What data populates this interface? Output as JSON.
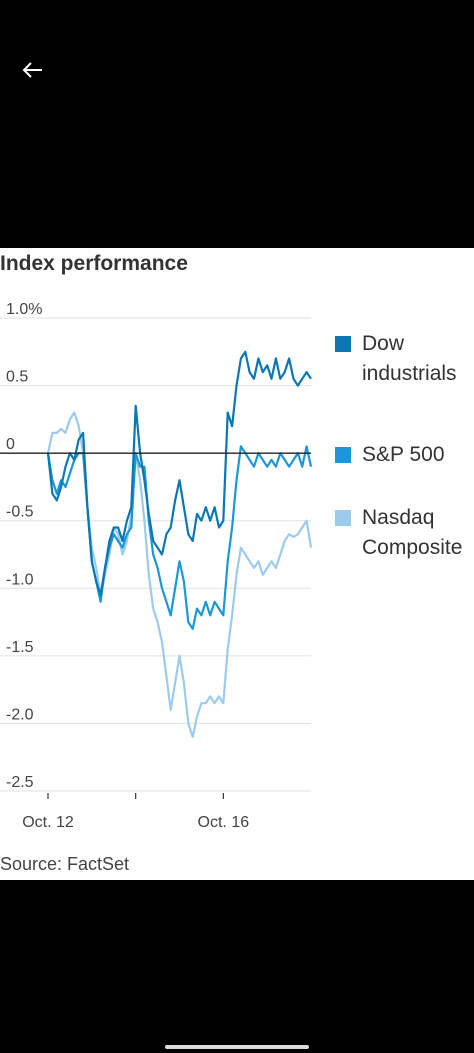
{
  "nav": {
    "back_icon": "arrow-left-icon"
  },
  "source": "Source: FactSet",
  "chart_data": {
    "type": "line",
    "title": "Index performance",
    "xlabel": "",
    "ylabel": "",
    "x": [
      0,
      1,
      2,
      3,
      4,
      5,
      6,
      7,
      8,
      9,
      10,
      11,
      12,
      13,
      14,
      15,
      16,
      17,
      18,
      19,
      20,
      21,
      22,
      23,
      24,
      25,
      26,
      27,
      28,
      29,
      30,
      31,
      32,
      33,
      34,
      35,
      36,
      37,
      38,
      39,
      40,
      41,
      42,
      43,
      44,
      45,
      46,
      47,
      48,
      49,
      50,
      51,
      52,
      53,
      54,
      55,
      56,
      57,
      58,
      59,
      60
    ],
    "x_tick_positions": [
      0,
      20,
      40
    ],
    "x_tick_labels": [
      "Oct. 12",
      "",
      "Oct. 16"
    ],
    "ylim": [
      -2.5,
      1.0
    ],
    "y_ticks": [
      1.0,
      0.5,
      0,
      -0.5,
      -1.0,
      -1.5,
      -2.0,
      -2.5
    ],
    "y_tick_labels": [
      "1.0%",
      "0.5",
      "0",
      "-0.5",
      "-1.0",
      "-1.5",
      "-2.0",
      "-2.5"
    ],
    "grid": true,
    "legend_position": "right",
    "colors": {
      "dow": "#0a77b2",
      "sp500": "#1a97d6",
      "nasdaq": "#9ccbeb",
      "zero_line": "#222222",
      "grid": "#e1e1e1"
    },
    "series": [
      {
        "name": "Nasdaq Composite",
        "key": "nasdaq",
        "values": [
          0.0,
          0.15,
          0.15,
          0.18,
          0.15,
          0.25,
          0.3,
          0.2,
          0.0,
          -0.4,
          -0.7,
          -0.85,
          -1.05,
          -0.9,
          -0.75,
          -0.55,
          -0.6,
          -0.75,
          -0.65,
          -0.45,
          0.0,
          -0.2,
          -0.5,
          -0.9,
          -1.15,
          -1.25,
          -1.4,
          -1.65,
          -1.9,
          -1.7,
          -1.5,
          -1.7,
          -2.0,
          -2.1,
          -1.95,
          -1.85,
          -1.85,
          -1.8,
          -1.85,
          -1.8,
          -1.85,
          -1.45,
          -1.2,
          -0.9,
          -0.7,
          -0.75,
          -0.8,
          -0.85,
          -0.8,
          -0.9,
          -0.85,
          -0.8,
          -0.85,
          -0.75,
          -0.65,
          -0.6,
          -0.62,
          -0.6,
          -0.55,
          -0.5,
          -0.7
        ]
      },
      {
        "name": "S&P 500",
        "key": "sp500",
        "values": [
          0.0,
          -0.2,
          -0.3,
          -0.2,
          -0.25,
          -0.15,
          -0.05,
          0.0,
          0.0,
          -0.4,
          -0.8,
          -0.95,
          -1.1,
          -0.85,
          -0.7,
          -0.6,
          -0.65,
          -0.7,
          -0.6,
          -0.55,
          0.0,
          -0.1,
          -0.1,
          -0.5,
          -0.75,
          -0.85,
          -1.0,
          -1.1,
          -1.2,
          -1.0,
          -0.8,
          -0.95,
          -1.25,
          -1.3,
          -1.15,
          -1.2,
          -1.1,
          -1.2,
          -1.1,
          -1.15,
          -1.2,
          -0.8,
          -0.55,
          -0.2,
          0.05,
          0.0,
          -0.05,
          -0.1,
          0.0,
          -0.05,
          -0.1,
          -0.05,
          -0.1,
          0.0,
          -0.05,
          -0.1,
          -0.05,
          0.0,
          -0.1,
          0.05,
          -0.1
        ]
      },
      {
        "name": "Dow industrials",
        "key": "dow",
        "values": [
          0.0,
          -0.3,
          -0.35,
          -0.25,
          -0.1,
          0.0,
          -0.05,
          0.1,
          0.15,
          -0.4,
          -0.8,
          -0.95,
          -1.05,
          -0.85,
          -0.65,
          -0.55,
          -0.55,
          -0.65,
          -0.5,
          -0.4,
          0.35,
          0.0,
          -0.2,
          -0.45,
          -0.65,
          -0.7,
          -0.75,
          -0.6,
          -0.55,
          -0.35,
          -0.2,
          -0.4,
          -0.6,
          -0.65,
          -0.45,
          -0.5,
          -0.4,
          -0.5,
          -0.4,
          -0.55,
          -0.5,
          0.3,
          0.2,
          0.5,
          0.7,
          0.75,
          0.6,
          0.55,
          0.7,
          0.6,
          0.65,
          0.55,
          0.7,
          0.55,
          0.6,
          0.7,
          0.55,
          0.5,
          0.55,
          0.6,
          0.55
        ]
      }
    ]
  },
  "legend": [
    {
      "label_lines": [
        "Dow",
        "industrials"
      ],
      "key": "dow"
    },
    {
      "label_lines": [
        "S&P 500"
      ],
      "key": "sp500"
    },
    {
      "label_lines": [
        "Nasdaq",
        "Composite"
      ],
      "key": "nasdaq"
    }
  ]
}
